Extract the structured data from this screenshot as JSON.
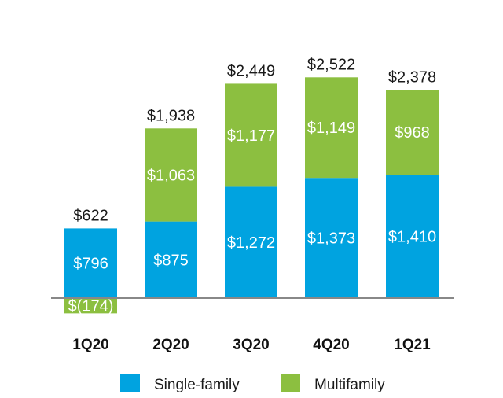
{
  "chart_data": {
    "type": "bar",
    "stacked": true,
    "categories": [
      "1Q20",
      "2Q20",
      "3Q20",
      "4Q20",
      "1Q21"
    ],
    "series": [
      {
        "name": "Single-family",
        "values": [
          796,
          875,
          1272,
          1373,
          1410
        ],
        "labels": [
          "$796",
          "$875",
          "$1,272",
          "$1,373",
          "$1,410"
        ],
        "color": "#00a3e0"
      },
      {
        "name": "Multifamily",
        "values": [
          -174,
          1063,
          1177,
          1149,
          968
        ],
        "labels": [
          "$(174)",
          "$1,063",
          "$1,177",
          "$1,149",
          "$968"
        ],
        "color": "#8cbf40"
      }
    ],
    "totals": [
      622,
      1938,
      2449,
      2522,
      2378
    ],
    "total_labels": [
      "$622",
      "$1,938",
      "$2,449",
      "$2,522",
      "$2,378"
    ],
    "title": "",
    "xlabel": "",
    "ylabel": "",
    "ylim": [
      -250,
      3100
    ],
    "grid": false,
    "legend_position": "bottom"
  },
  "colors": {
    "axis": "#888888"
  }
}
